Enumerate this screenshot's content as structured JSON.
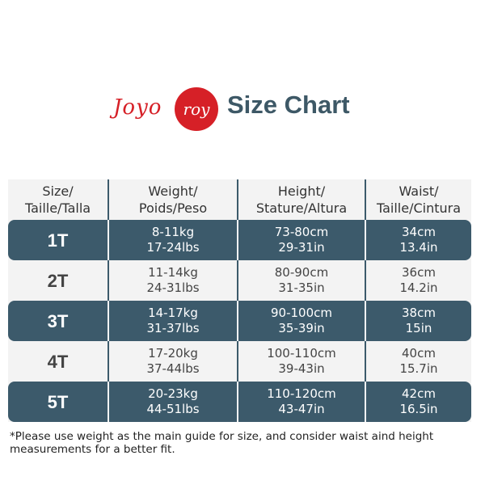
{
  "brand": {
    "logo_text": "Joyo roy",
    "script": "Joyo",
    "circle": "roy",
    "color": "#d62027"
  },
  "title": "Size Chart",
  "colors": {
    "title": "#3d5866",
    "dark_row": "#3c5a6b",
    "light_row": "#f3f3f3"
  },
  "headers": [
    [
      "Size/",
      "Taille/Talla"
    ],
    [
      "Weight/",
      "Poids/Peso"
    ],
    [
      "Height/",
      "Stature/Altura"
    ],
    [
      "Waist/",
      "Taille/Cintura"
    ]
  ],
  "rows": [
    {
      "size": "1T",
      "weight": [
        "8-11kg",
        "17-24lbs"
      ],
      "height": [
        "73-80cm",
        "29-31in"
      ],
      "waist": [
        "34cm",
        "13.4in"
      ]
    },
    {
      "size": "2T",
      "weight": [
        "11-14kg",
        "24-31lbs"
      ],
      "height": [
        "80-90cm",
        "31-35in"
      ],
      "waist": [
        "36cm",
        "14.2in"
      ]
    },
    {
      "size": "3T",
      "weight": [
        "14-17kg",
        "31-37lbs"
      ],
      "height": [
        "90-100cm",
        "35-39in"
      ],
      "waist": [
        "38cm",
        "15in"
      ]
    },
    {
      "size": "4T",
      "weight": [
        "17-20kg",
        "37-44lbs"
      ],
      "height": [
        "100-110cm",
        "39-43in"
      ],
      "waist": [
        "40cm",
        "15.7in"
      ]
    },
    {
      "size": "5T",
      "weight": [
        "20-23kg",
        "44-51lbs"
      ],
      "height": [
        "110-120cm",
        "43-47in"
      ],
      "waist": [
        "42cm",
        "16.5in"
      ]
    }
  ],
  "footnote": "*Please use weight as the main guide for size, and consider waist aind height measurements for a better fit."
}
